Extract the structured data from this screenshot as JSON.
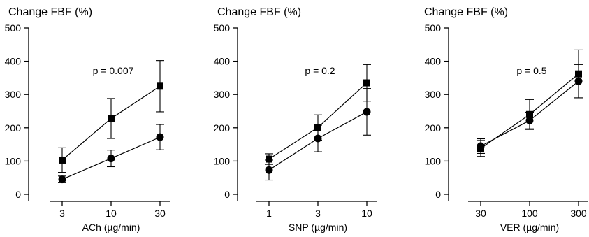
{
  "chart_data": [
    {
      "type": "line",
      "title": "Change FBF (%)",
      "xlabel": "ACh (µg/min)",
      "annotation": "p = 0.007",
      "x_scale": "log",
      "categories": [
        "3",
        "10",
        "30"
      ],
      "ylim": [
        0,
        500
      ],
      "yticks": [
        "0",
        "100",
        "200",
        "300",
        "400",
        "500"
      ],
      "series": [
        {
          "marker": "square",
          "values": [
            103,
            228,
            325
          ],
          "error": [
            37,
            60,
            77
          ]
        },
        {
          "marker": "circle",
          "values": [
            45,
            108,
            172
          ],
          "error": [
            10,
            25,
            38
          ]
        }
      ]
    },
    {
      "type": "line",
      "title": "Change FBF (%)",
      "xlabel": "SNP (µg/min)",
      "annotation": "p = 0.2",
      "x_scale": "log",
      "categories": [
        "1",
        "3",
        "10"
      ],
      "ylim": [
        0,
        500
      ],
      "yticks": [
        "0",
        "100",
        "200",
        "300",
        "400",
        "500"
      ],
      "series": [
        {
          "marker": "square",
          "values": [
            106,
            201,
            335
          ],
          "error": [
            16,
            38,
            55
          ]
        },
        {
          "marker": "circle",
          "values": [
            73,
            168,
            248
          ],
          "error": [
            30,
            40,
            70
          ]
        }
      ]
    },
    {
      "type": "line",
      "title": "Change FBF (%)",
      "xlabel": "VER (µg/min)",
      "annotation": "p = 0.5",
      "x_scale": "log",
      "categories": [
        "30",
        "100",
        "300"
      ],
      "ylim": [
        0,
        500
      ],
      "yticks": [
        "0",
        "100",
        "200",
        "300",
        "400",
        "500"
      ],
      "series": [
        {
          "marker": "square",
          "values": [
            138,
            240,
            362
          ],
          "error": [
            24,
            45,
            72
          ]
        },
        {
          "marker": "circle",
          "values": [
            145,
            222,
            340
          ],
          "error": [
            22,
            25,
            50
          ]
        }
      ]
    }
  ]
}
